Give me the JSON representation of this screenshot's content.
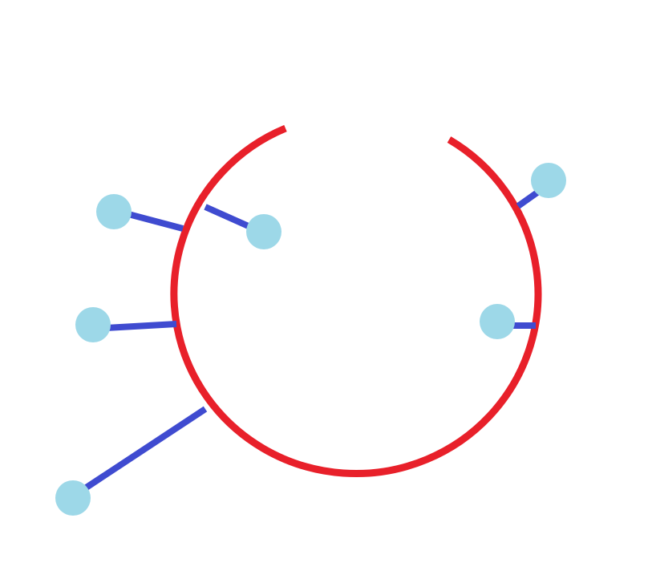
{
  "colors": {
    "background": "#ffffff",
    "ring": "#e8202a",
    "stem": "#3f4bd0",
    "head": "#9dd8e8"
  },
  "diagram": {
    "ring": {
      "gap": "top"
    },
    "pins": [
      {
        "name": "pin-upper-left-outward",
        "side": "outside"
      },
      {
        "name": "pin-upper-left-inward",
        "side": "inside"
      },
      {
        "name": "pin-left-outward",
        "side": "outside"
      },
      {
        "name": "pin-lower-left-outward",
        "side": "outside"
      },
      {
        "name": "pin-upper-right-outward",
        "side": "outside"
      },
      {
        "name": "pin-right-inward",
        "side": "inside"
      }
    ]
  }
}
